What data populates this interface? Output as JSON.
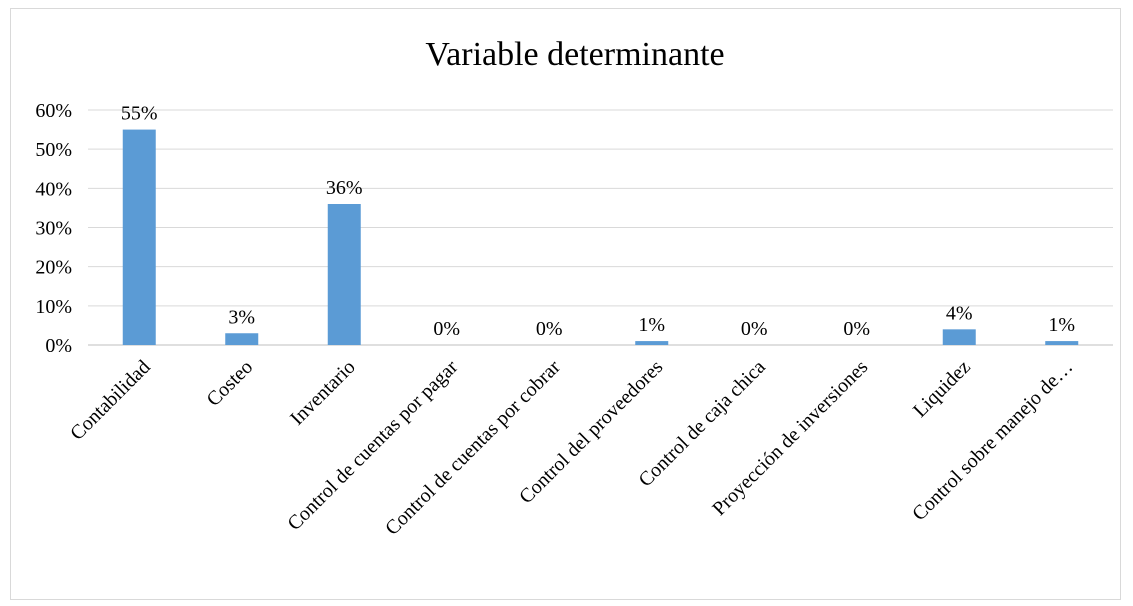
{
  "chart_data": {
    "type": "bar",
    "title": "Variable determinante",
    "categories": [
      "Contabilidad",
      "Costeo",
      "Inventario",
      "Control de cuentas por pagar",
      "Control de cuentas por cobrar",
      "Control del proveedores",
      "Control de caja chica",
      "Proyección de inversiones",
      "Liquidez",
      "Control sobre manejo de…"
    ],
    "values": [
      55,
      3,
      36,
      0,
      0,
      1,
      0,
      0,
      4,
      1
    ],
    "data_labels": [
      "55%",
      "3%",
      "36%",
      "0%",
      "0%",
      "1%",
      "0%",
      "0%",
      "4%",
      "1%"
    ],
    "ylim": [
      0,
      60
    ],
    "yticks": [
      0,
      10,
      20,
      30,
      40,
      50,
      60
    ],
    "ytick_labels": [
      "0%",
      "10%",
      "20%",
      "30%",
      "40%",
      "50%",
      "60%"
    ],
    "grid": true,
    "legend": "none",
    "bar_color": "#5b9bd5"
  }
}
